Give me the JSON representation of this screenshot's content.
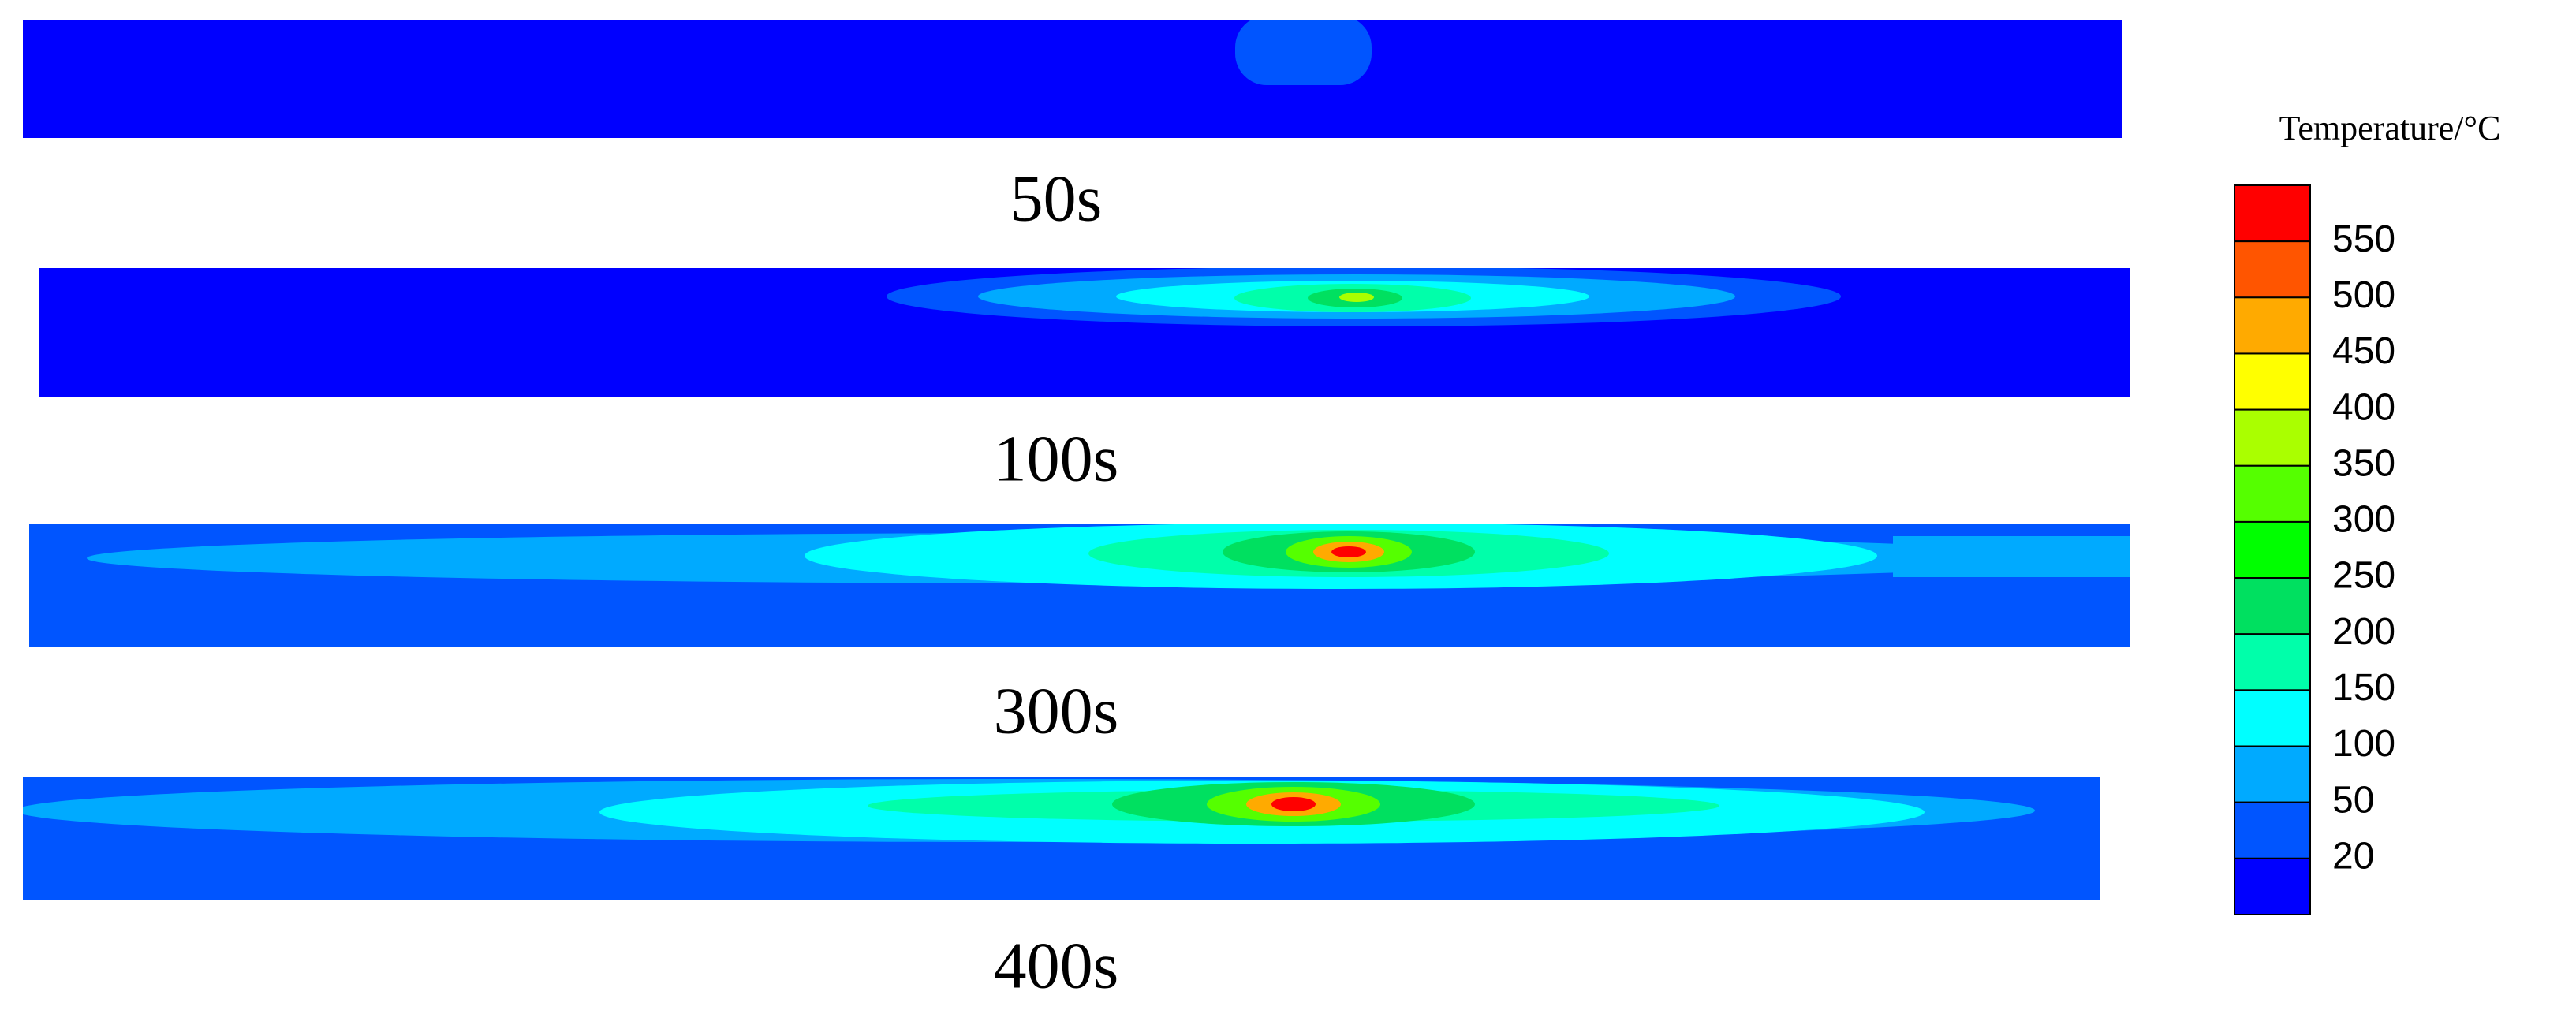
{
  "panels": [
    {
      "label": "50s"
    },
    {
      "label": "100s"
    },
    {
      "label": "300s"
    },
    {
      "label": "400s"
    }
  ],
  "colorbar": {
    "title": "Temperature/°C",
    "ticks": [
      550,
      500,
      450,
      400,
      350,
      300,
      250,
      200,
      150,
      100,
      50,
      20
    ],
    "colors": [
      "#ff0000",
      "#ff5500",
      "#ffaa00",
      "#ffff00",
      "#aaff00",
      "#55ff00",
      "#00ff00",
      "#00e060",
      "#00ffaa",
      "#00ffff",
      "#00aaff",
      "#0055ff",
      "#0000ff"
    ]
  }
}
